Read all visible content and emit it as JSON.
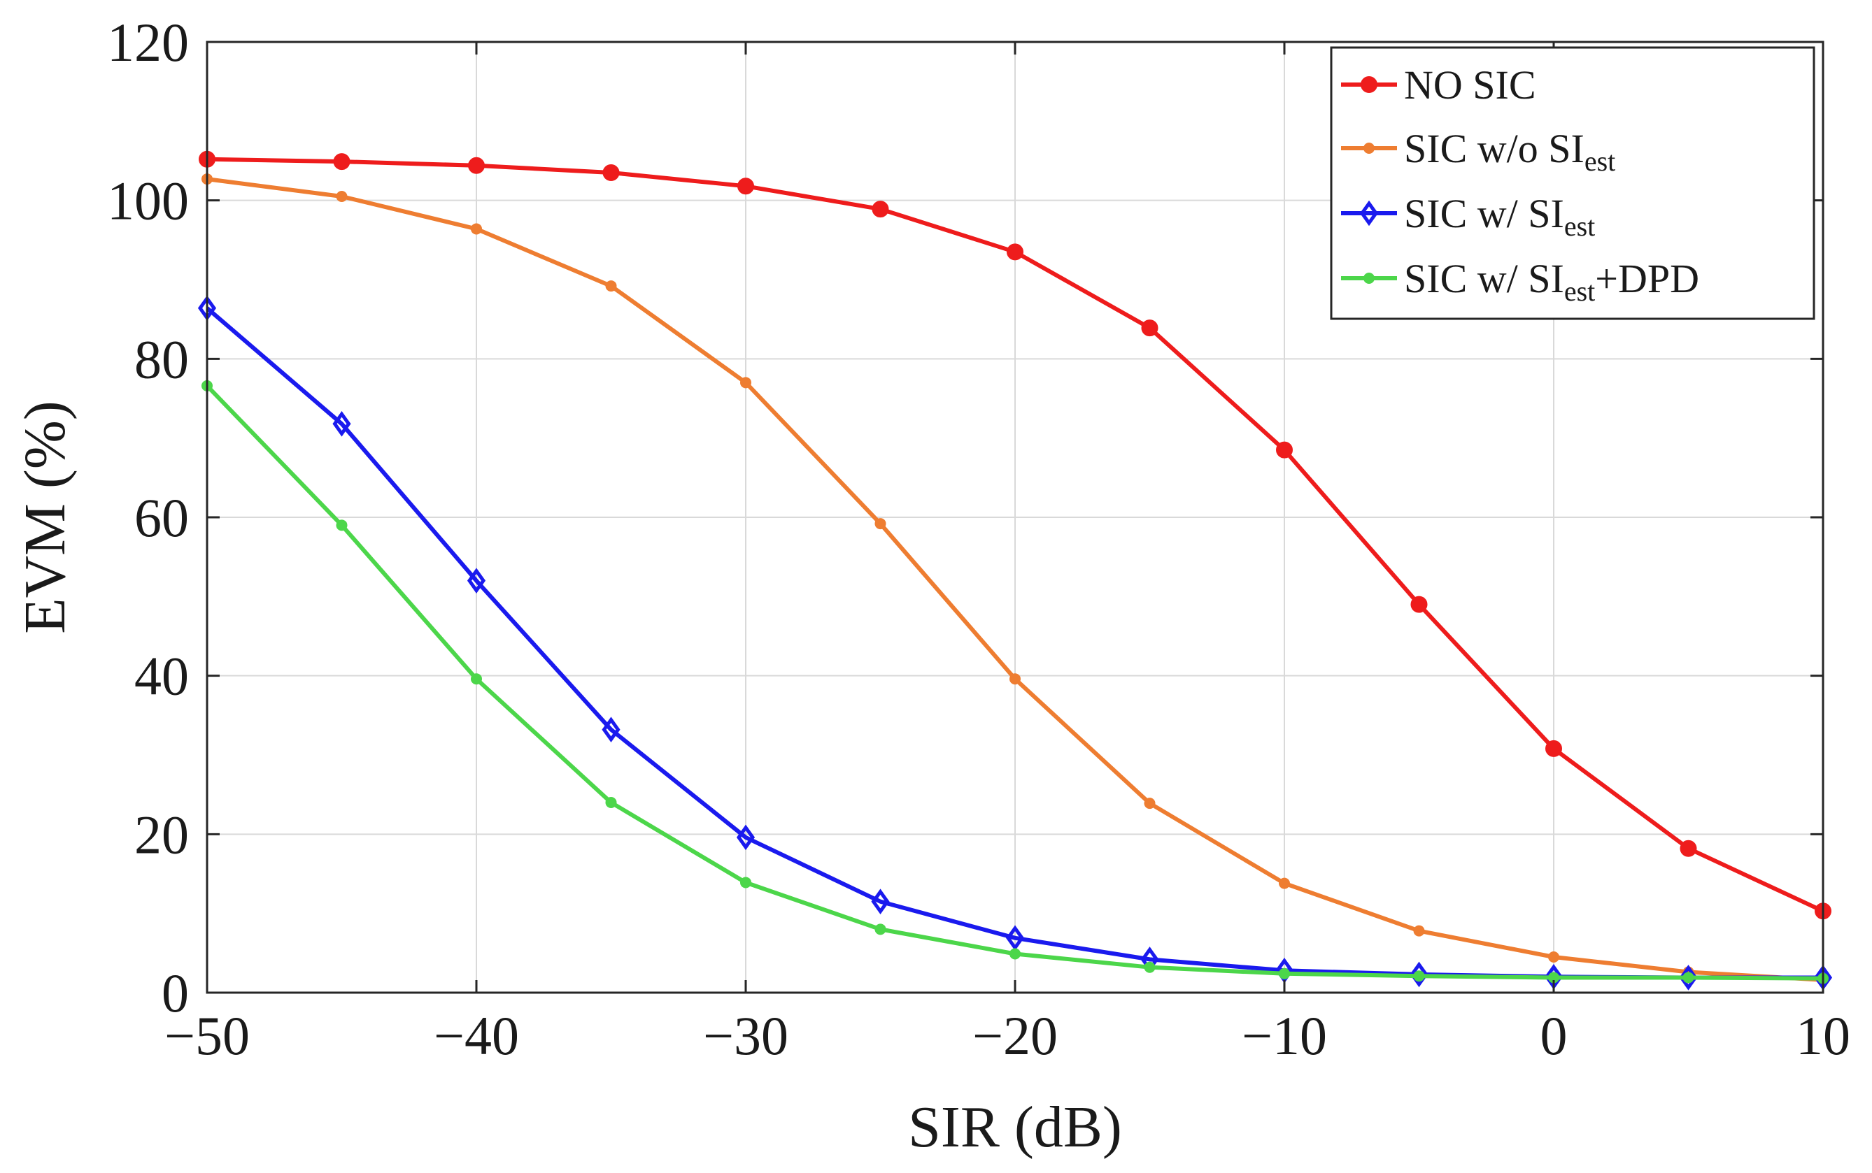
{
  "chart_data": {
    "type": "line",
    "title": "",
    "xlabel": "SIR (dB)",
    "ylabel": "EVM (%)",
    "xlim": [
      -50,
      10
    ],
    "ylim": [
      0,
      120
    ],
    "xticks": [
      -50,
      -40,
      -30,
      -20,
      -10,
      0,
      10
    ],
    "xtick_labels": [
      "−50",
      "−40",
      "−30",
      "−20",
      "−10",
      "0",
      "10"
    ],
    "yticks": [
      0,
      20,
      40,
      60,
      80,
      100,
      120
    ],
    "ytick_labels": [
      "0",
      "20",
      "40",
      "60",
      "80",
      "100",
      "120"
    ],
    "grid": true,
    "legend_position": "top-right",
    "x": [
      -50,
      -45,
      -40,
      -35,
      -30,
      -25,
      -20,
      -15,
      -10,
      -5,
      0,
      5,
      10
    ],
    "series": [
      {
        "name": "NO SIC",
        "legend": {
          "pre": "NO SIC",
          "sub": "",
          "post": ""
        },
        "color": "#ee1c1c",
        "marker": "circle",
        "values": [
          105.2,
          104.9,
          104.4,
          103.5,
          101.8,
          98.9,
          93.5,
          83.9,
          68.5,
          49.0,
          30.8,
          18.2,
          10.3
        ]
      },
      {
        "name": "SIC w/o SIest",
        "legend": {
          "pre": "SIC  w/o  SI",
          "sub": "est",
          "post": ""
        },
        "color": "#ee7d31",
        "marker": "dot",
        "values": [
          102.7,
          100.5,
          96.4,
          89.2,
          77.0,
          59.2,
          39.6,
          23.9,
          13.8,
          7.8,
          4.5,
          2.6,
          1.6
        ]
      },
      {
        "name": "SIC w/ SIest",
        "legend": {
          "pre": "SIC  w/  SI",
          "sub": "est",
          "post": ""
        },
        "color": "#1a1aee",
        "marker": "diamond",
        "values": [
          86.4,
          71.8,
          52.0,
          33.2,
          19.6,
          11.5,
          6.9,
          4.2,
          2.8,
          2.3,
          2.0,
          1.9,
          1.9
        ]
      },
      {
        "name": "SIC w/ SIest+DPD",
        "legend": {
          "pre": "SIC  w/  SI",
          "sub": "est",
          "post": "+DPD"
        },
        "color": "#4cd64a",
        "marker": "dot",
        "values": [
          76.6,
          59.0,
          39.6,
          24.0,
          13.9,
          8.0,
          4.9,
          3.2,
          2.4,
          2.1,
          1.9,
          1.9,
          1.8
        ]
      }
    ]
  }
}
